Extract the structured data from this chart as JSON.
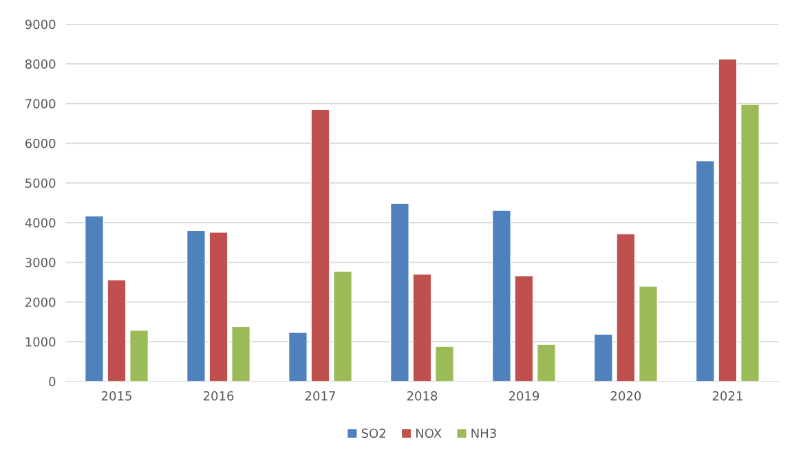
{
  "chart_data": {
    "type": "bar",
    "categories": [
      "2015",
      "2016",
      "2017",
      "2018",
      "2019",
      "2020",
      "2021"
    ],
    "series": [
      {
        "name": "SO2",
        "color": "#4f81bd",
        "values": [
          4170,
          3800,
          1240,
          4480,
          4310,
          1190,
          5560
        ]
      },
      {
        "name": "NOX",
        "color": "#c0504d",
        "values": [
          2560,
          3760,
          6850,
          2700,
          2660,
          3720,
          8120
        ]
      },
      {
        "name": "NH3",
        "color": "#9bbb59",
        "values": [
          1290,
          1380,
          2770,
          880,
          930,
          2400,
          6980
        ]
      }
    ],
    "ylim": [
      0,
      9000
    ],
    "yticks": [
      0,
      1000,
      2000,
      3000,
      4000,
      5000,
      6000,
      7000,
      8000,
      9000
    ],
    "grid": "y",
    "legend": "bottom"
  }
}
